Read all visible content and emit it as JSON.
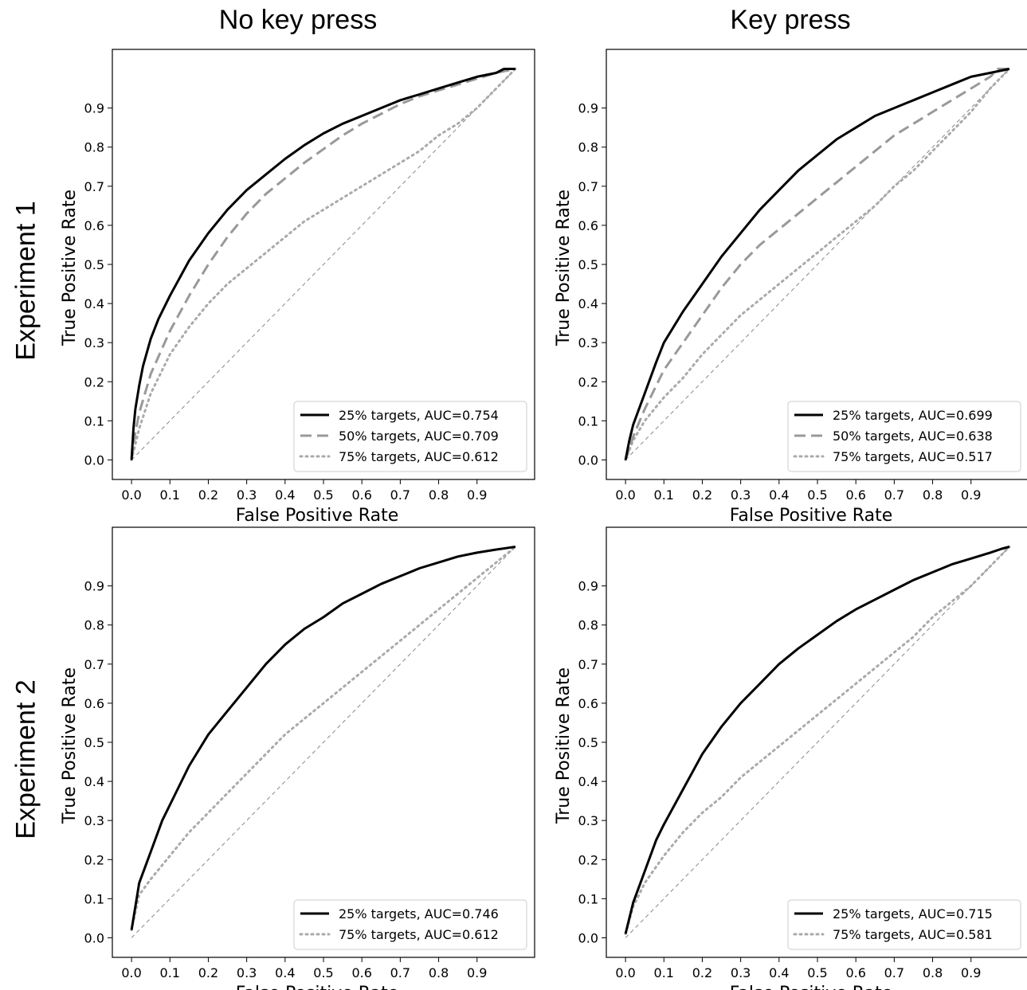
{
  "column_titles": [
    "No key press",
    "Key press"
  ],
  "row_titles": [
    "Experiment 1",
    "Experiment 2"
  ],
  "style": {
    "series_colors": {
      "25% targets": "#000000",
      "50% targets": "#999999",
      "75% targets": "#aaaaaa",
      "chance": "#888888"
    }
  },
  "chart_data": [
    {
      "type": "line",
      "panel": "Experiment 1 / No key press",
      "xlabel": "False Positive Rate",
      "ylabel": "True Positive Rate",
      "xlim": [
        -0.05,
        1.05
      ],
      "ylim": [
        -0.05,
        1.05
      ],
      "xticks": [
        "0.0",
        "0.1",
        "0.2",
        "0.3",
        "0.4",
        "0.5",
        "0.6",
        "0.7",
        "0.8",
        "0.9"
      ],
      "yticks": [
        "0.0",
        "0.1",
        "0.2",
        "0.3",
        "0.4",
        "0.5",
        "0.6",
        "0.7",
        "0.8",
        "0.9"
      ],
      "legend_position": "lower-right",
      "diagonal": {
        "x": [
          0,
          1
        ],
        "y": [
          0,
          1
        ]
      },
      "series": [
        {
          "name": "25% targets, AUC=0.754",
          "style": "solid",
          "x": [
            0,
            0.005,
            0.01,
            0.02,
            0.03,
            0.05,
            0.07,
            0.1,
            0.15,
            0.2,
            0.25,
            0.3,
            0.35,
            0.4,
            0.45,
            0.5,
            0.55,
            0.6,
            0.65,
            0.7,
            0.75,
            0.8,
            0.85,
            0.9,
            0.95,
            0.97,
            1.0
          ],
          "y": [
            0,
            0.08,
            0.13,
            0.19,
            0.24,
            0.31,
            0.36,
            0.42,
            0.51,
            0.58,
            0.64,
            0.69,
            0.73,
            0.77,
            0.805,
            0.835,
            0.86,
            0.88,
            0.9,
            0.92,
            0.935,
            0.95,
            0.965,
            0.98,
            0.99,
            1.0,
            1.0
          ]
        },
        {
          "name": "50% targets, AUC=0.709",
          "style": "dashed",
          "x": [
            0,
            0.01,
            0.02,
            0.05,
            0.1,
            0.15,
            0.2,
            0.25,
            0.3,
            0.35,
            0.4,
            0.45,
            0.5,
            0.55,
            0.6,
            0.65,
            0.7,
            0.75,
            0.8,
            0.85,
            0.9,
            0.95,
            1.0
          ],
          "y": [
            0,
            0.07,
            0.12,
            0.22,
            0.33,
            0.42,
            0.5,
            0.57,
            0.63,
            0.68,
            0.72,
            0.76,
            0.795,
            0.83,
            0.86,
            0.885,
            0.91,
            0.93,
            0.945,
            0.96,
            0.975,
            0.99,
            1.0
          ]
        },
        {
          "name": "75% targets, AUC=0.612",
          "style": "dotted",
          "x": [
            0,
            0.02,
            0.05,
            0.1,
            0.15,
            0.2,
            0.25,
            0.3,
            0.35,
            0.4,
            0.45,
            0.5,
            0.55,
            0.6,
            0.65,
            0.7,
            0.75,
            0.8,
            0.85,
            0.9,
            0.95,
            1.0
          ],
          "y": [
            0,
            0.08,
            0.17,
            0.27,
            0.34,
            0.4,
            0.45,
            0.49,
            0.53,
            0.57,
            0.61,
            0.64,
            0.67,
            0.7,
            0.73,
            0.76,
            0.79,
            0.83,
            0.86,
            0.9,
            0.95,
            1.0
          ]
        }
      ]
    },
    {
      "type": "line",
      "panel": "Experiment 1 / Key press",
      "xlabel": "False Positive Rate",
      "ylabel": "True Positive Rate",
      "xlim": [
        -0.05,
        1.05
      ],
      "ylim": [
        -0.05,
        1.05
      ],
      "xticks": [
        "0.0",
        "0.1",
        "0.2",
        "0.3",
        "0.4",
        "0.5",
        "0.6",
        "0.7",
        "0.8",
        "0.9"
      ],
      "yticks": [
        "0.0",
        "0.1",
        "0.2",
        "0.3",
        "0.4",
        "0.5",
        "0.6",
        "0.7",
        "0.8",
        "0.9"
      ],
      "legend_position": "lower-right",
      "diagonal": {
        "x": [
          0,
          1
        ],
        "y": [
          0,
          1
        ]
      },
      "series": [
        {
          "name": "25% targets, AUC=0.699",
          "style": "solid",
          "x": [
            0,
            0.01,
            0.02,
            0.05,
            0.08,
            0.1,
            0.15,
            0.2,
            0.25,
            0.3,
            0.35,
            0.4,
            0.45,
            0.5,
            0.55,
            0.6,
            0.65,
            0.7,
            0.75,
            0.8,
            0.85,
            0.9,
            0.95,
            1.0
          ],
          "y": [
            0,
            0.05,
            0.09,
            0.17,
            0.25,
            0.3,
            0.38,
            0.45,
            0.52,
            0.58,
            0.64,
            0.69,
            0.74,
            0.78,
            0.82,
            0.85,
            0.88,
            0.9,
            0.92,
            0.94,
            0.96,
            0.98,
            0.99,
            1.0
          ]
        },
        {
          "name": "50% targets, AUC=0.638",
          "style": "dashed",
          "x": [
            0,
            0.02,
            0.05,
            0.1,
            0.15,
            0.2,
            0.25,
            0.3,
            0.35,
            0.4,
            0.45,
            0.5,
            0.55,
            0.6,
            0.65,
            0.7,
            0.75,
            0.8,
            0.85,
            0.9,
            0.95,
            0.97,
            1.0
          ],
          "y": [
            0,
            0.06,
            0.13,
            0.23,
            0.3,
            0.37,
            0.44,
            0.5,
            0.55,
            0.59,
            0.63,
            0.67,
            0.71,
            0.75,
            0.79,
            0.83,
            0.86,
            0.89,
            0.92,
            0.95,
            0.98,
            1.0,
            1.0
          ]
        },
        {
          "name": "75% targets, AUC=0.517",
          "style": "dotted",
          "x": [
            0,
            0.02,
            0.05,
            0.1,
            0.15,
            0.2,
            0.25,
            0.3,
            0.35,
            0.4,
            0.45,
            0.5,
            0.55,
            0.6,
            0.65,
            0.7,
            0.75,
            0.8,
            0.85,
            0.9,
            0.95,
            1.0
          ],
          "y": [
            0,
            0.05,
            0.1,
            0.16,
            0.21,
            0.27,
            0.32,
            0.37,
            0.41,
            0.45,
            0.49,
            0.53,
            0.57,
            0.61,
            0.65,
            0.7,
            0.74,
            0.79,
            0.84,
            0.89,
            0.95,
            1.0
          ]
        }
      ]
    },
    {
      "type": "line",
      "panel": "Experiment 2 / No key press",
      "xlabel": "False Positive Rate",
      "ylabel": "True Positive Rate",
      "xlim": [
        -0.05,
        1.05
      ],
      "ylim": [
        -0.05,
        1.05
      ],
      "xticks": [
        "0.0",
        "0.1",
        "0.2",
        "0.3",
        "0.4",
        "0.5",
        "0.6",
        "0.7",
        "0.8",
        "0.9"
      ],
      "yticks": [
        "0.0",
        "0.1",
        "0.2",
        "0.3",
        "0.4",
        "0.5",
        "0.6",
        "0.7",
        "0.8",
        "0.9"
      ],
      "legend_position": "lower-right",
      "diagonal": {
        "x": [
          0,
          1
        ],
        "y": [
          0,
          1
        ]
      },
      "series": [
        {
          "name": "25% targets, AUC=0.746",
          "style": "solid",
          "x": [
            0,
            0.01,
            0.02,
            0.05,
            0.08,
            0.1,
            0.15,
            0.2,
            0.25,
            0.3,
            0.35,
            0.4,
            0.45,
            0.5,
            0.55,
            0.6,
            0.65,
            0.7,
            0.75,
            0.8,
            0.85,
            0.9,
            0.95,
            1.0
          ],
          "y": [
            0.02,
            0.08,
            0.14,
            0.22,
            0.3,
            0.34,
            0.44,
            0.52,
            0.58,
            0.64,
            0.7,
            0.75,
            0.79,
            0.82,
            0.855,
            0.88,
            0.905,
            0.925,
            0.945,
            0.96,
            0.975,
            0.985,
            0.993,
            1.0
          ]
        },
        {
          "name": "75% targets, AUC=0.612",
          "style": "dotted",
          "x": [
            0,
            0.02,
            0.05,
            0.1,
            0.15,
            0.2,
            0.25,
            0.3,
            0.35,
            0.4,
            0.45,
            0.5,
            0.55,
            0.6,
            0.65,
            0.7,
            0.75,
            0.8,
            0.85,
            0.9,
            0.95,
            1.0
          ],
          "y": [
            0.02,
            0.11,
            0.15,
            0.21,
            0.27,
            0.32,
            0.37,
            0.42,
            0.47,
            0.52,
            0.56,
            0.6,
            0.64,
            0.68,
            0.72,
            0.76,
            0.8,
            0.84,
            0.88,
            0.92,
            0.96,
            1.0
          ]
        }
      ]
    },
    {
      "type": "line",
      "panel": "Experiment 2 / Key press",
      "xlabel": "False Positive Rate",
      "ylabel": "True Positive Rate",
      "xlim": [
        -0.05,
        1.05
      ],
      "ylim": [
        -0.05,
        1.05
      ],
      "xticks": [
        "0.0",
        "0.1",
        "0.2",
        "0.3",
        "0.4",
        "0.5",
        "0.6",
        "0.7",
        "0.8",
        "0.9"
      ],
      "yticks": [
        "0.0",
        "0.1",
        "0.2",
        "0.3",
        "0.4",
        "0.5",
        "0.6",
        "0.7",
        "0.8",
        "0.9"
      ],
      "legend_position": "lower-right",
      "diagonal": {
        "x": [
          0,
          1
        ],
        "y": [
          0,
          1
        ]
      },
      "series": [
        {
          "name": "25% targets, AUC=0.715",
          "style": "solid",
          "x": [
            0,
            0.01,
            0.02,
            0.05,
            0.08,
            0.1,
            0.15,
            0.2,
            0.25,
            0.3,
            0.35,
            0.4,
            0.45,
            0.5,
            0.55,
            0.6,
            0.65,
            0.7,
            0.75,
            0.8,
            0.85,
            0.9,
            0.95,
            0.98,
            1.0
          ],
          "y": [
            0.01,
            0.05,
            0.09,
            0.17,
            0.25,
            0.29,
            0.38,
            0.47,
            0.54,
            0.6,
            0.65,
            0.7,
            0.74,
            0.775,
            0.81,
            0.84,
            0.865,
            0.89,
            0.915,
            0.935,
            0.955,
            0.97,
            0.985,
            0.995,
            1.0
          ]
        },
        {
          "name": "75% targets, AUC=0.581",
          "style": "dotted",
          "x": [
            0,
            0.02,
            0.05,
            0.1,
            0.15,
            0.2,
            0.25,
            0.3,
            0.35,
            0.4,
            0.45,
            0.5,
            0.55,
            0.6,
            0.65,
            0.7,
            0.75,
            0.8,
            0.85,
            0.9,
            0.95,
            1.0
          ],
          "y": [
            0.01,
            0.08,
            0.14,
            0.21,
            0.27,
            0.32,
            0.36,
            0.41,
            0.45,
            0.49,
            0.53,
            0.57,
            0.61,
            0.65,
            0.69,
            0.73,
            0.77,
            0.82,
            0.86,
            0.9,
            0.95,
            1.0
          ]
        }
      ]
    }
  ]
}
